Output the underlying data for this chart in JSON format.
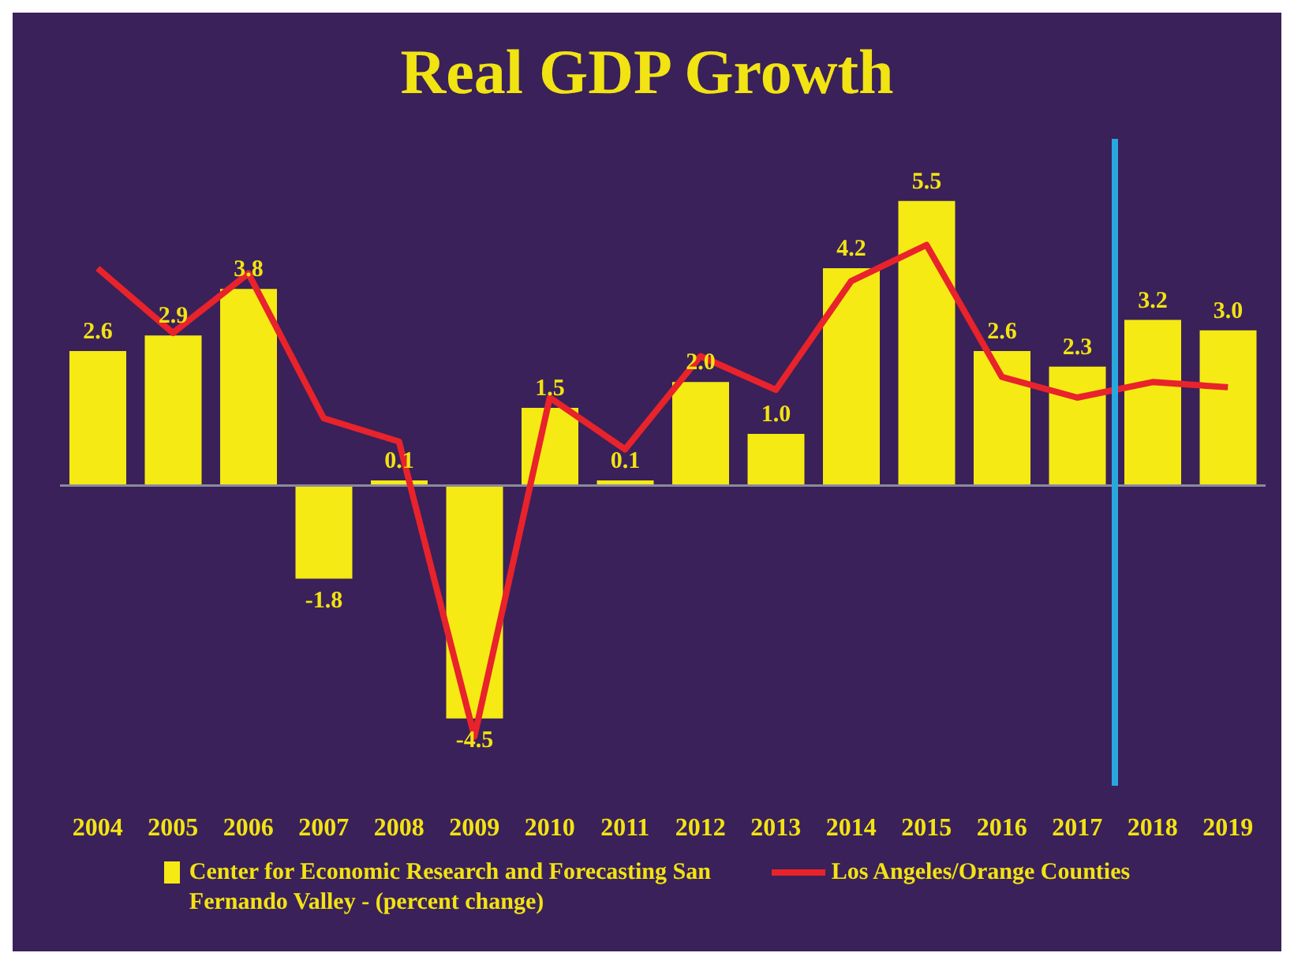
{
  "chart_data": {
    "type": "bar",
    "title": "Real GDP Growth",
    "x": [
      2004,
      2005,
      2006,
      2007,
      2008,
      2009,
      2010,
      2011,
      2012,
      2013,
      2014,
      2015,
      2016,
      2017,
      2018,
      2019
    ],
    "xlim": [
      2003.5,
      2019.5
    ],
    "xticks": [
      2004,
      2005,
      2006,
      2007,
      2008,
      2009,
      2010,
      2011,
      2012,
      2013,
      2014,
      2015,
      2016,
      2017,
      2018,
      2019
    ],
    "ylim": [
      -5.8,
      6.7
    ],
    "tick_labels": "x",
    "legend": "bottom",
    "series": [
      {
        "name": "Center for Economic Research and Forecasting San Fernando Valley - (percent change)",
        "color": "#f5ea14",
        "values": [
          2.6,
          2.9,
          3.8,
          -1.8,
          0.1,
          -4.5,
          1.5,
          0.1,
          2.0,
          1.0,
          4.2,
          5.5,
          2.6,
          2.3,
          3.2,
          3.0
        ],
        "value_labels": [
          "2.6",
          "2.9",
          "3.8",
          "-1.8",
          "0.1",
          "-4.5",
          "1.5",
          "0.1",
          "2.0",
          "1.0",
          "4.2",
          "5.5",
          "2.6",
          "2.3",
          "3.2",
          "3.0"
        ]
      },
      {
        "type": "line",
        "name": "Los Angeles/Orange Counties",
        "color": "#e8232b",
        "values": [
          4.2,
          2.95,
          4.1,
          1.3,
          0.85,
          -4.85,
          1.7,
          0.7,
          2.5,
          1.85,
          3.95,
          4.65,
          2.1,
          1.7,
          2.0,
          1.9
        ]
      }
    ],
    "ref_lines": [
      {
        "axis": "x",
        "value": 2017.5,
        "color": "#29a8e0"
      }
    ]
  }
}
